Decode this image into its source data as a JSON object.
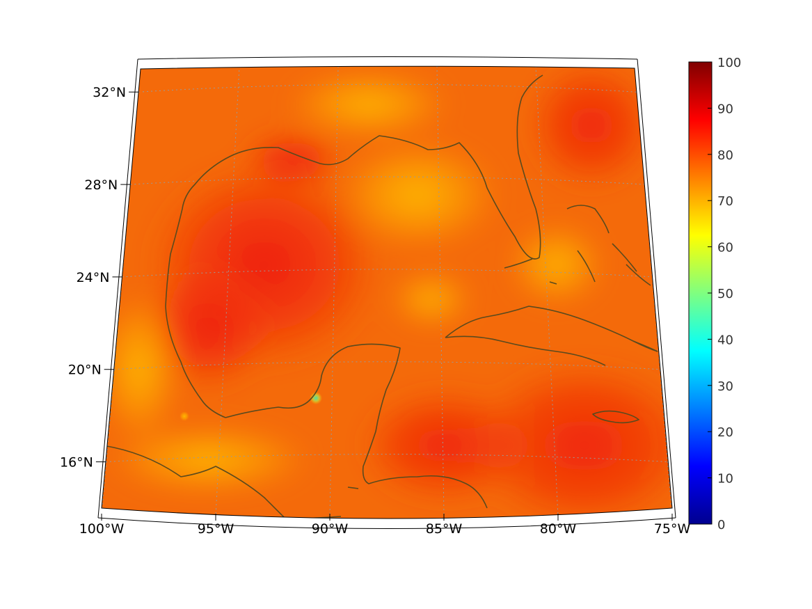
{
  "map": {
    "projection": "conic",
    "extent": {
      "lon": [
        -100,
        -75
      ],
      "lat": [
        14,
        33
      ]
    },
    "lon_ticks": [
      {
        "value": -100,
        "label": "100°W"
      },
      {
        "value": -95,
        "label": "95°W"
      },
      {
        "value": -90,
        "label": "90°W"
      },
      {
        "value": -85,
        "label": "85°W"
      },
      {
        "value": -80,
        "label": "80°W"
      },
      {
        "value": -75,
        "label": "75°W"
      }
    ],
    "lat_ticks": [
      {
        "value": 16,
        "label": "16°N"
      },
      {
        "value": 20,
        "label": "20°N"
      },
      {
        "value": 24,
        "label": "24°N"
      },
      {
        "value": 28,
        "label": "28°N"
      },
      {
        "value": 32,
        "label": "32°N"
      }
    ],
    "grid": "dotted",
    "colors": {
      "coastline": "#5a4a1e",
      "frame": "#000000",
      "grid": "#9a9a9a"
    }
  },
  "colorbar": {
    "colormap": "jet",
    "range": [
      0,
      100
    ],
    "ticks": [
      "0",
      "10",
      "20",
      "30",
      "40",
      "50",
      "60",
      "70",
      "80",
      "90",
      "100"
    ]
  }
}
